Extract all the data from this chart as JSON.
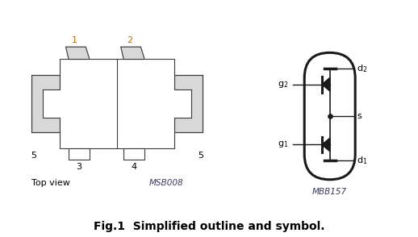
{
  "title": "Fig.1  Simplified outline and symbol.",
  "title_fontsize": 10,
  "bg_color": "#ffffff",
  "line_color": "#3a3a3a",
  "pin_label_color": "#b87000",
  "text_color": "#000000",
  "italic_color": "#3a3a5a",
  "top_view_label": "Top view",
  "msb_label": "MSB008",
  "mbb_label": "MBB157"
}
